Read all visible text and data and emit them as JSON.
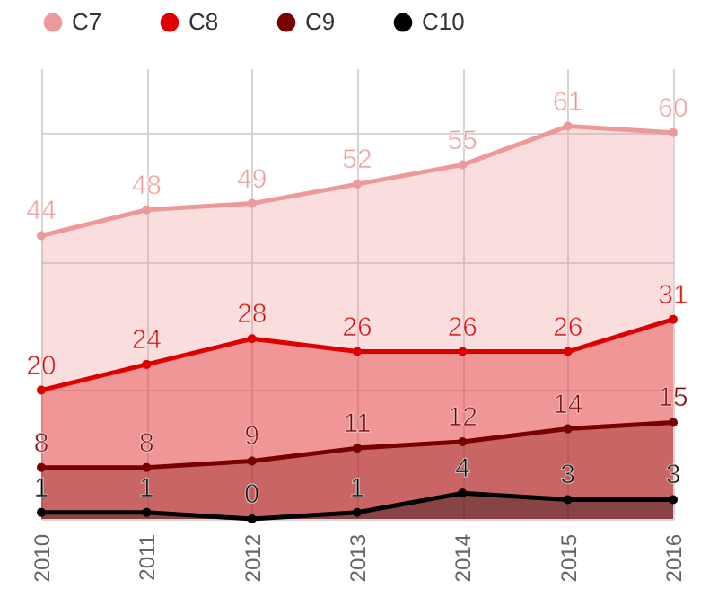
{
  "chart_data": {
    "type": "area",
    "categories": [
      "2010",
      "2011",
      "2012",
      "2013",
      "2014",
      "2015",
      "2016"
    ],
    "series": [
      {
        "name": "C7",
        "color": "#ee9999",
        "values": [
          44,
          48,
          49,
          52,
          55,
          61,
          60
        ]
      },
      {
        "name": "C8",
        "color": "#dd0000",
        "values": [
          20,
          24,
          28,
          26,
          26,
          26,
          31
        ]
      },
      {
        "name": "C9",
        "color": "#770000",
        "values": [
          8,
          8,
          9,
          11,
          12,
          14,
          15
        ]
      },
      {
        "name": "C10",
        "color": "#000000",
        "values": [
          1,
          1,
          0,
          1,
          4,
          3,
          3
        ]
      }
    ],
    "ylim": [
      0,
      70
    ],
    "yticks": [
      {
        "value": 0,
        "label": null
      },
      {
        "value": 20,
        "label": null
      },
      {
        "value": 40,
        "label": null
      },
      {
        "value": 60,
        "label": null
      }
    ],
    "tick_labels": "x",
    "grid": true,
    "legend": "top left",
    "marker": "circle",
    "data_labels": true
  }
}
